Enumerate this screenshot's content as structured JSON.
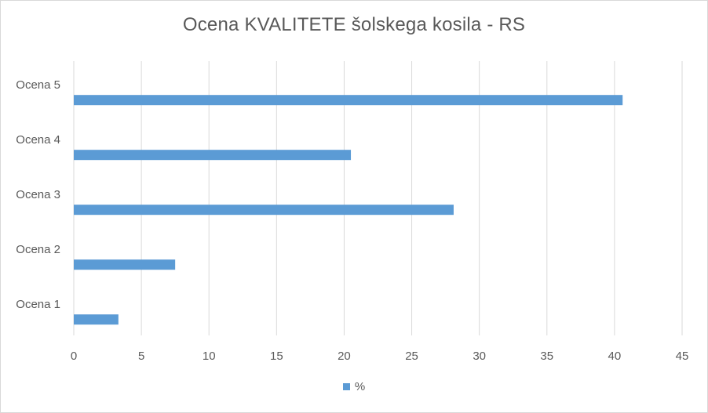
{
  "chart_data": {
    "type": "bar",
    "orientation": "horizontal",
    "title": "Ocena KVALITETE šolskega kosila - RS",
    "categories": [
      "Ocena 5",
      "Ocena 4",
      "Ocena 3",
      "Ocena 2",
      "Ocena 1"
    ],
    "series": [
      {
        "name": "%",
        "values": [
          40.6,
          20.5,
          28.1,
          7.5,
          3.3
        ]
      }
    ],
    "xlim": [
      0,
      45
    ],
    "xticks": [
      0,
      5,
      10,
      15,
      20,
      25,
      30,
      35,
      40,
      45
    ],
    "xlabel": "",
    "ylabel": "",
    "grid": "vertical",
    "legend": "bottom",
    "colors": {
      "bar": "#5b9bd5",
      "grid": "#d9d9d9",
      "text": "#595959"
    }
  }
}
